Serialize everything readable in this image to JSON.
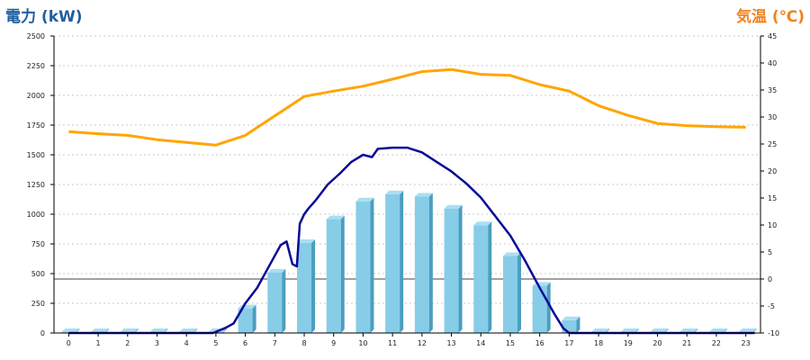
{
  "chart_data": {
    "type": "bar",
    "title_left": "電力 (kW)",
    "title_right": "気温 (℃)",
    "categories": [
      "0",
      "1",
      "2",
      "3",
      "4",
      "5",
      "6",
      "7",
      "8",
      "9",
      "10",
      "11",
      "12",
      "13",
      "14",
      "15",
      "16",
      "17",
      "18",
      "19",
      "20",
      "21",
      "22",
      "23"
    ],
    "y_left": {
      "min": 0,
      "max": 2500,
      "ticks": [
        0,
        250,
        500,
        750,
        1000,
        1250,
        1500,
        1750,
        2000,
        2250,
        2500
      ]
    },
    "y_right": {
      "min": -10,
      "max": 45,
      "ticks": [
        -10,
        -5,
        0,
        5,
        10,
        15,
        20,
        25,
        30,
        35,
        40,
        45
      ]
    },
    "bars": {
      "color": "#87cde8",
      "values": [
        0,
        0,
        0,
        0,
        0,
        0,
        200,
        500,
        750,
        950,
        1100,
        1160,
        1140,
        1040,
        900,
        640,
        390,
        100,
        0,
        0,
        0,
        0,
        0,
        0
      ]
    },
    "power_line": {
      "color": "#0a0a96",
      "x": [
        0,
        4.9,
        5.3,
        5.6,
        6.0,
        6.4,
        6.8,
        7.2,
        7.4,
        7.6,
        7.75,
        7.85,
        8.0,
        8.15,
        8.4,
        8.8,
        9.2,
        9.6,
        10.0,
        10.3,
        10.5,
        11.0,
        11.5,
        12.0,
        12.5,
        13.0,
        13.5,
        14.0,
        14.5,
        15.0,
        15.5,
        16.0,
        16.5,
        16.8,
        16.95,
        17.0,
        23.3
      ],
      "y": [
        0,
        0,
        40,
        80,
        250,
        380,
        560,
        740,
        770,
        580,
        560,
        920,
        1000,
        1050,
        1120,
        1250,
        1340,
        1440,
        1500,
        1480,
        1550,
        1560,
        1560,
        1520,
        1440,
        1360,
        1260,
        1140,
        980,
        820,
        610,
        380,
        160,
        40,
        10,
        0,
        0
      ]
    },
    "temperature_line": {
      "color": "#ffa500",
      "values": [
        27.3,
        26.9,
        26.6,
        25.8,
        25.3,
        24.8,
        26.6,
        30.2,
        33.8,
        34.8,
        35.7,
        37.0,
        38.4,
        38.8,
        37.9,
        37.7,
        36.0,
        34.8,
        32.1,
        30.3,
        28.8,
        28.4,
        28.2,
        28.1
      ]
    },
    "reference_line_right": 0,
    "grid": true
  }
}
